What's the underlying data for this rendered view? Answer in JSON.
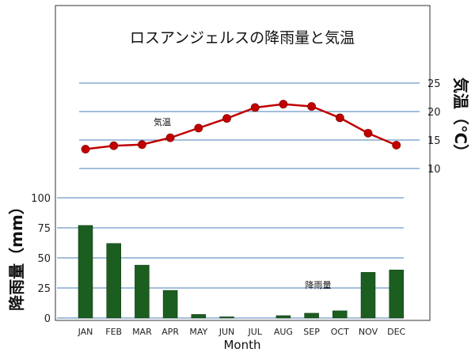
{
  "chart_data": {
    "type": "bar+line",
    "title": "ロスアンジェルスの降雨量と気温",
    "xlabel": "Month",
    "categories": [
      "JAN",
      "FEB",
      "MAR",
      "APR",
      "MAY",
      "JUN",
      "JUL",
      "AUG",
      "SEP",
      "OCT",
      "NOV",
      "DEC"
    ],
    "precipitation": {
      "name": "降雨量",
      "axis_label": "降雨量（mm）",
      "unit": "mm",
      "ylim": [
        0,
        100
      ],
      "ticks": [
        0,
        25,
        50,
        75,
        100
      ],
      "values": [
        77,
        62,
        44,
        23,
        3,
        1,
        0,
        2,
        4,
        6,
        38,
        40
      ],
      "color": "#1b5e20"
    },
    "temperature": {
      "name": "気温",
      "axis_label": "気温（℃）",
      "unit": "℃",
      "ylim": [
        10,
        25
      ],
      "ticks": [
        10,
        15,
        20,
        25
      ],
      "values": [
        13.4,
        14.0,
        14.2,
        15.4,
        17.1,
        18.8,
        20.7,
        21.3,
        20.9,
        18.9,
        16.2,
        14.1
      ],
      "color": "#c00000"
    },
    "grid": true
  }
}
